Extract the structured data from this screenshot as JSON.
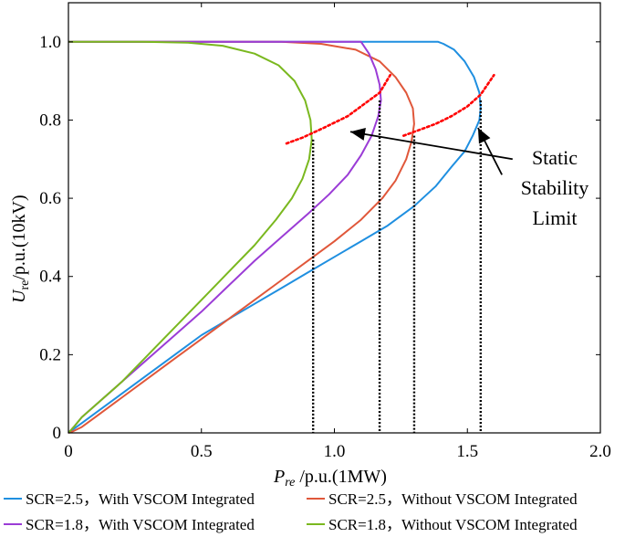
{
  "chart_data": {
    "type": "line",
    "title": "",
    "xlabel": {
      "main": "P",
      "sub": "re",
      "rest": " /p.u.(1MW)"
    },
    "ylabel": {
      "main": "U",
      "sub": "re",
      "rest": "/p.u.(10kV)"
    },
    "xlim": [
      0,
      2.0
    ],
    "ylim": [
      0,
      1.1
    ],
    "xticks": [
      0,
      0.5,
      1.0,
      1.5,
      2.0
    ],
    "xtick_labels": [
      "0",
      "0.5",
      "1.0",
      "1.5",
      "2.0"
    ],
    "yticks": [
      0,
      0.2,
      0.4,
      0.6,
      0.8,
      1.0
    ],
    "ytick_labels": [
      "0",
      "0.2",
      "0.4",
      "0.6",
      "0.8",
      "1.0"
    ],
    "grid": false,
    "legend_position": "bottom",
    "series": [
      {
        "name": "SCR=2.5，With VSCOM Integrated",
        "color": "#1f8fe0",
        "points": [
          [
            0,
            0
          ],
          [
            0.02,
            0.01
          ],
          [
            0.05,
            0.025
          ],
          [
            0.1,
            0.05
          ],
          [
            0.2,
            0.1
          ],
          [
            0.3,
            0.15
          ],
          [
            0.4,
            0.2
          ],
          [
            0.5,
            0.25
          ],
          [
            0.6,
            0.29
          ],
          [
            0.7,
            0.33
          ],
          [
            0.8,
            0.37
          ],
          [
            0.9,
            0.41
          ],
          [
            1.0,
            0.45
          ],
          [
            1.1,
            0.49
          ],
          [
            1.2,
            0.53
          ],
          [
            1.3,
            0.58
          ],
          [
            1.38,
            0.63
          ],
          [
            1.44,
            0.68
          ],
          [
            1.49,
            0.72
          ],
          [
            1.52,
            0.76
          ],
          [
            1.545,
            0.8
          ],
          [
            1.55,
            0.83
          ],
          [
            1.545,
            0.87
          ],
          [
            1.525,
            0.91
          ],
          [
            1.49,
            0.95
          ],
          [
            1.45,
            0.98
          ],
          [
            1.41,
            0.995
          ],
          [
            1.39,
            1.0
          ],
          [
            1.2,
            1.0
          ],
          [
            1.0,
            1.0
          ],
          [
            0.8,
            1.0
          ],
          [
            0.6,
            1.0
          ],
          [
            0.4,
            1.0
          ],
          [
            0.2,
            1.0
          ],
          [
            0,
            1.0
          ]
        ]
      },
      {
        "name": "SCR=2.5，Without VSCOM Integrated",
        "color": "#e0573a",
        "points": [
          [
            0,
            0
          ],
          [
            0.02,
            0.005
          ],
          [
            0.05,
            0.015
          ],
          [
            0.1,
            0.04
          ],
          [
            0.2,
            0.09
          ],
          [
            0.3,
            0.14
          ],
          [
            0.4,
            0.19
          ],
          [
            0.5,
            0.24
          ],
          [
            0.6,
            0.29
          ],
          [
            0.7,
            0.34
          ],
          [
            0.8,
            0.39
          ],
          [
            0.9,
            0.44
          ],
          [
            1.0,
            0.49
          ],
          [
            1.1,
            0.545
          ],
          [
            1.18,
            0.6
          ],
          [
            1.23,
            0.645
          ],
          [
            1.27,
            0.7
          ],
          [
            1.29,
            0.745
          ],
          [
            1.3,
            0.79
          ],
          [
            1.295,
            0.83
          ],
          [
            1.27,
            0.87
          ],
          [
            1.23,
            0.91
          ],
          [
            1.17,
            0.95
          ],
          [
            1.08,
            0.98
          ],
          [
            0.95,
            0.995
          ],
          [
            0.8,
            1.0
          ],
          [
            0.5,
            1.0
          ],
          [
            0.3,
            1.0
          ],
          [
            0,
            1.0
          ]
        ]
      },
      {
        "name": "SCR=1.8，With VSCOM Integrated",
        "color": "#9b3cd6",
        "points": [
          [
            0,
            0
          ],
          [
            0.02,
            0.015
          ],
          [
            0.05,
            0.04
          ],
          [
            0.1,
            0.07
          ],
          [
            0.2,
            0.13
          ],
          [
            0.3,
            0.19
          ],
          [
            0.4,
            0.25
          ],
          [
            0.5,
            0.31
          ],
          [
            0.6,
            0.375
          ],
          [
            0.7,
            0.44
          ],
          [
            0.8,
            0.5
          ],
          [
            0.9,
            0.56
          ],
          [
            0.98,
            0.61
          ],
          [
            1.05,
            0.66
          ],
          [
            1.1,
            0.71
          ],
          [
            1.14,
            0.76
          ],
          [
            1.165,
            0.81
          ],
          [
            1.175,
            0.85
          ],
          [
            1.17,
            0.89
          ],
          [
            1.155,
            0.93
          ],
          [
            1.13,
            0.97
          ],
          [
            1.11,
            0.99
          ],
          [
            1.1,
            1.0
          ],
          [
            0.9,
            1.0
          ],
          [
            0.7,
            1.0
          ],
          [
            0.5,
            1.0
          ],
          [
            0.3,
            1.0
          ],
          [
            0,
            1.0
          ]
        ]
      },
      {
        "name": "SCR=1.8，Without VSCOM Integrated",
        "color": "#7ab81f",
        "points": [
          [
            0,
            0
          ],
          [
            0.02,
            0.015
          ],
          [
            0.05,
            0.04
          ],
          [
            0.1,
            0.07
          ],
          [
            0.2,
            0.13
          ],
          [
            0.3,
            0.2
          ],
          [
            0.4,
            0.27
          ],
          [
            0.5,
            0.34
          ],
          [
            0.6,
            0.41
          ],
          [
            0.7,
            0.48
          ],
          [
            0.78,
            0.545
          ],
          [
            0.84,
            0.6
          ],
          [
            0.88,
            0.65
          ],
          [
            0.905,
            0.7
          ],
          [
            0.915,
            0.75
          ],
          [
            0.91,
            0.8
          ],
          [
            0.89,
            0.85
          ],
          [
            0.85,
            0.9
          ],
          [
            0.79,
            0.94
          ],
          [
            0.7,
            0.97
          ],
          [
            0.58,
            0.99
          ],
          [
            0.45,
            0.998
          ],
          [
            0.28,
            1.0
          ],
          [
            0,
            1.0
          ]
        ]
      }
    ],
    "stability_limit_lines": {
      "color": "#000000",
      "points": [
        [
          0.92,
          0.75
        ],
        [
          1.17,
          0.85
        ],
        [
          1.3,
          0.76
        ],
        [
          1.55,
          0.85
        ]
      ]
    },
    "stability_arcs": {
      "color": "#ff0000",
      "arcs": [
        [
          [
            0.82,
            0.74
          ],
          [
            0.88,
            0.755
          ],
          [
            0.96,
            0.78
          ],
          [
            1.05,
            0.81
          ],
          [
            1.12,
            0.845
          ],
          [
            1.17,
            0.87
          ],
          [
            1.21,
            0.915
          ]
        ],
        [
          [
            1.26,
            0.76
          ],
          [
            1.32,
            0.775
          ],
          [
            1.38,
            0.79
          ],
          [
            1.44,
            0.81
          ],
          [
            1.5,
            0.835
          ],
          [
            1.55,
            0.865
          ],
          [
            1.6,
            0.915
          ]
        ]
      ]
    },
    "annotation": {
      "lines": [
        "Static",
        "Stability",
        "Limit"
      ],
      "arrows": [
        {
          "from": [
            1.67,
            0.7
          ],
          "to": [
            1.06,
            0.77
          ]
        },
        {
          "from": [
            1.63,
            0.66
          ],
          "to": [
            1.54,
            0.78
          ]
        }
      ]
    }
  }
}
